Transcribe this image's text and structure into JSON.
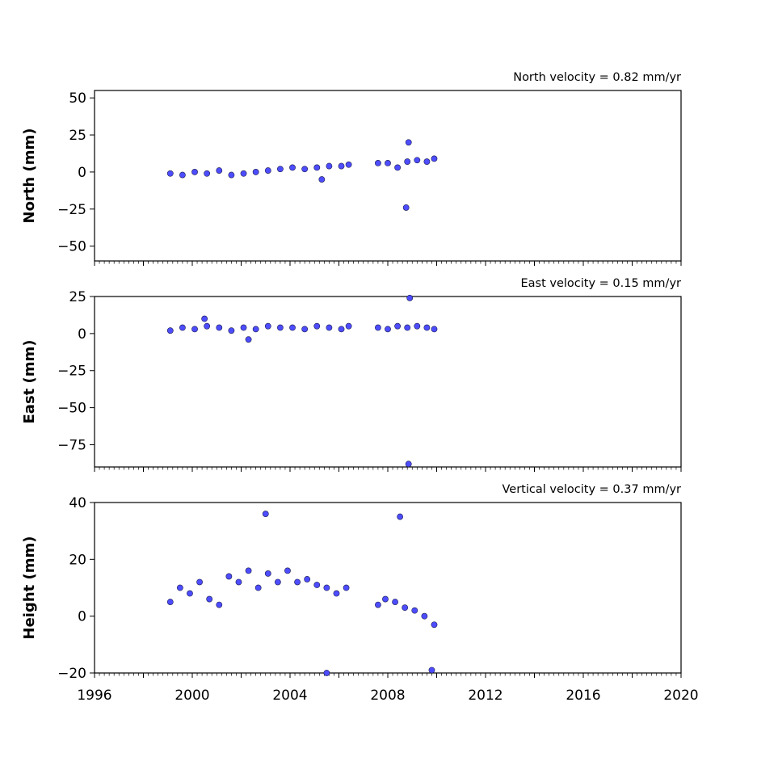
{
  "chart_data": [
    {
      "type": "scatter",
      "title": "North velocity = 0.82 mm/yr",
      "ylabel": "North (mm)",
      "xlim": [
        1996,
        2020
      ],
      "ylim": [
        -60,
        55
      ],
      "yticks": [
        "50",
        "25",
        "0",
        "−25",
        "−50"
      ],
      "ytick_values": [
        50,
        25,
        0,
        -25,
        -50
      ],
      "marker_color": "#4d4dff",
      "series": [
        {
          "x": [
            1999.1,
            1999.6,
            2000.1,
            2000.6,
            2001.1,
            2001.6,
            2002.1,
            2002.6,
            2003.1,
            2003.6,
            2004.1,
            2004.6,
            2005.1,
            2005.6,
            2006.1,
            2006.4,
            2007.6,
            2008.0,
            2008.4,
            2008.8,
            2009.2,
            2009.6,
            2009.9,
            2008.85,
            2008.75,
            2005.3
          ],
          "y": [
            -1,
            -2,
            0,
            -1,
            1,
            -2,
            -1,
            0,
            1,
            2,
            3,
            2,
            3,
            4,
            4,
            5,
            6,
            6,
            3,
            7,
            8,
            7,
            9,
            20,
            -24,
            -5
          ]
        }
      ]
    },
    {
      "type": "scatter",
      "title": "East velocity = 0.15 mm/yr",
      "ylabel": "East (mm)",
      "xlim": [
        1996,
        2020
      ],
      "ylim": [
        -90,
        25
      ],
      "yticks": [
        "25",
        "0",
        "−25",
        "−50",
        "−75"
      ],
      "ytick_values": [
        25,
        0,
        -25,
        -50,
        -75
      ],
      "marker_color": "#4d4dff",
      "series": [
        {
          "x": [
            1999.1,
            1999.6,
            2000.1,
            2000.6,
            2001.1,
            2001.6,
            2002.1,
            2002.6,
            2003.1,
            2003.6,
            2004.1,
            2004.6,
            2005.1,
            2005.6,
            2006.1,
            2006.4,
            2007.6,
            2008.0,
            2008.4,
            2008.8,
            2009.2,
            2009.6,
            2009.9,
            2008.9,
            2008.85,
            2002.3,
            2000.5
          ],
          "y": [
            2,
            4,
            3,
            5,
            4,
            2,
            4,
            3,
            5,
            4,
            4,
            3,
            5,
            4,
            3,
            5,
            4,
            3,
            5,
            4,
            5,
            4,
            3,
            24,
            -88,
            -4,
            10
          ]
        }
      ]
    },
    {
      "type": "scatter",
      "title": "Vertical velocity = 0.37 mm/yr",
      "ylabel": "Height (mm)",
      "xlim": [
        1996,
        2020
      ],
      "ylim": [
        -20,
        40
      ],
      "yticks": [
        "40",
        "20",
        "0",
        "−20"
      ],
      "ytick_values": [
        40,
        20,
        0,
        -20
      ],
      "xticks": [
        "1996",
        "2000",
        "2004",
        "2008",
        "2012",
        "2016",
        "2020"
      ],
      "xtick_values": [
        1996,
        2000,
        2004,
        2008,
        2012,
        2016,
        2020
      ],
      "marker_color": "#4d4dff",
      "series": [
        {
          "x": [
            1999.1,
            1999.5,
            1999.9,
            2000.3,
            2000.7,
            2001.1,
            2001.5,
            2001.9,
            2002.3,
            2002.7,
            2003.1,
            2003.5,
            2003.9,
            2004.3,
            2004.7,
            2005.1,
            2005.5,
            2005.9,
            2006.3,
            2007.6,
            2007.9,
            2008.3,
            2008.7,
            2009.1,
            2009.5,
            2009.9,
            2003.0,
            2008.5,
            2005.5,
            2009.8
          ],
          "y": [
            5,
            10,
            8,
            12,
            6,
            4,
            14,
            12,
            16,
            10,
            15,
            12,
            16,
            12,
            13,
            11,
            10,
            8,
            10,
            4,
            6,
            5,
            3,
            2,
            0,
            -3,
            36,
            35,
            -20,
            -19
          ]
        }
      ]
    }
  ]
}
